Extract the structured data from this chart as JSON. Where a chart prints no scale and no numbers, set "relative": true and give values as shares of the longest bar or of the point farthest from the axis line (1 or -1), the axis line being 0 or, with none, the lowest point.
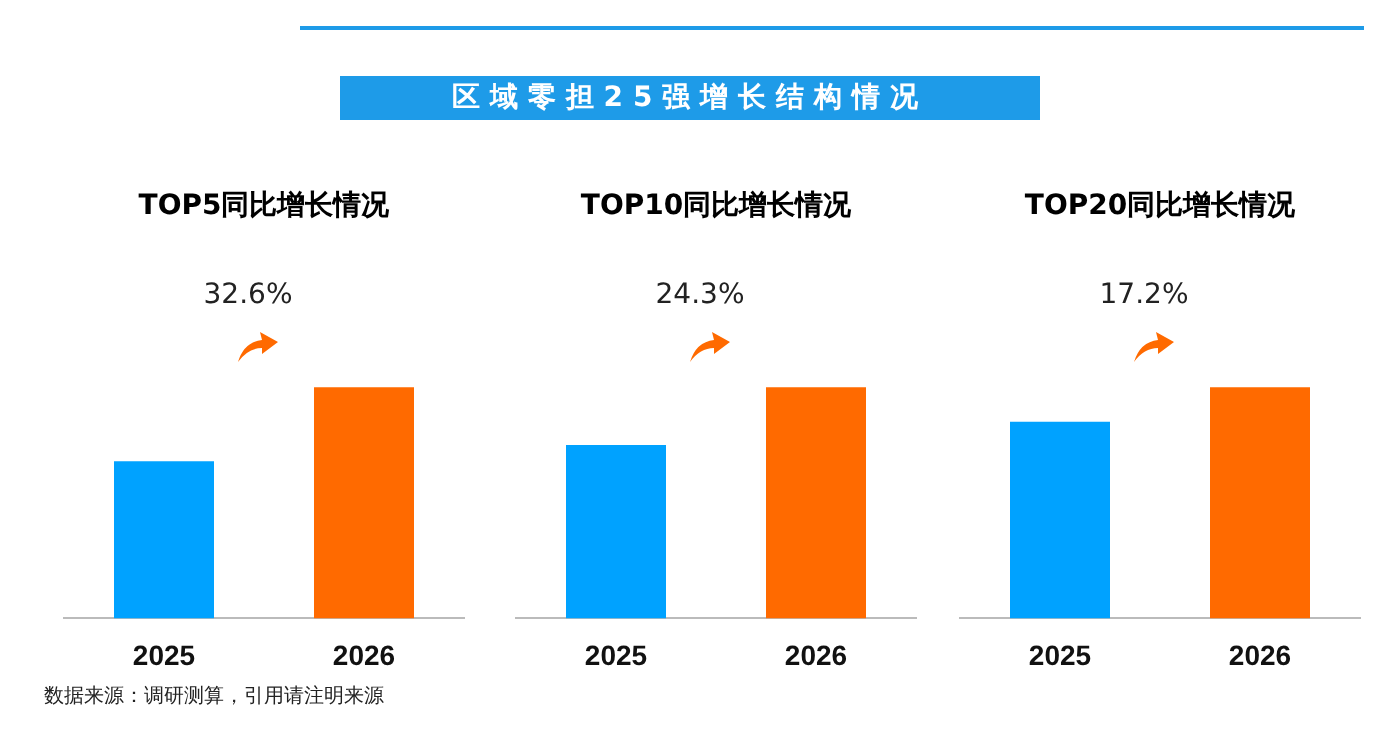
{
  "chart_data": [
    {
      "type": "other",
      "title": "区域零担25强增长结构情况"
    },
    {
      "type": "bar",
      "title": "TOP5同比增长情况",
      "categories": [
        "2025",
        "2026"
      ],
      "values": [
        0.68,
        1
      ],
      "colors": [
        "#00a2ff",
        "#ff6a00"
      ],
      "relative": true,
      "annotations": [
        "32.6%"
      ]
    },
    {
      "type": "bar",
      "title": "TOP10同比增长情况",
      "categories": [
        "2025",
        "2026"
      ],
      "values": [
        0.75,
        1
      ],
      "colors": [
        "#00a2ff",
        "#ff6a00"
      ],
      "relative": true,
      "annotations": [
        "24.3%"
      ]
    },
    {
      "type": "bar",
      "title": "TOP20同比增长情况",
      "categories": [
        "2025",
        "2026"
      ],
      "values": [
        0.85,
        1
      ],
      "colors": [
        "#00a2ff",
        "#ff6a00"
      ],
      "relative": true,
      "annotations": [
        "17.2%",
        "数据来源：调研测算，引用请注明来源"
      ]
    }
  ]
}
